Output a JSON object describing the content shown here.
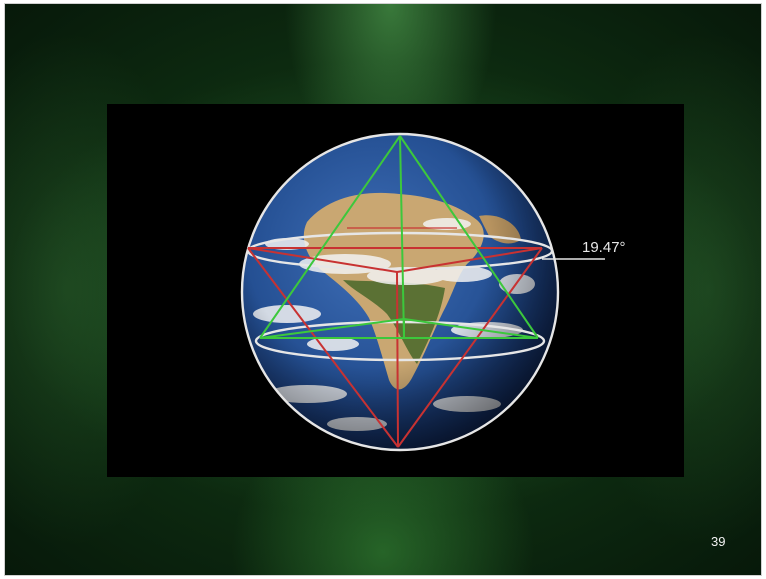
{
  "figure": {
    "angle_label": "19.47°"
  },
  "slide": {
    "number": "39"
  },
  "colors": {
    "tetrahedron_up": "#3cc83c",
    "tetrahedron_down": "#c83232",
    "sphere_outline": "#e6e6e6",
    "background_green": "#16401a"
  }
}
